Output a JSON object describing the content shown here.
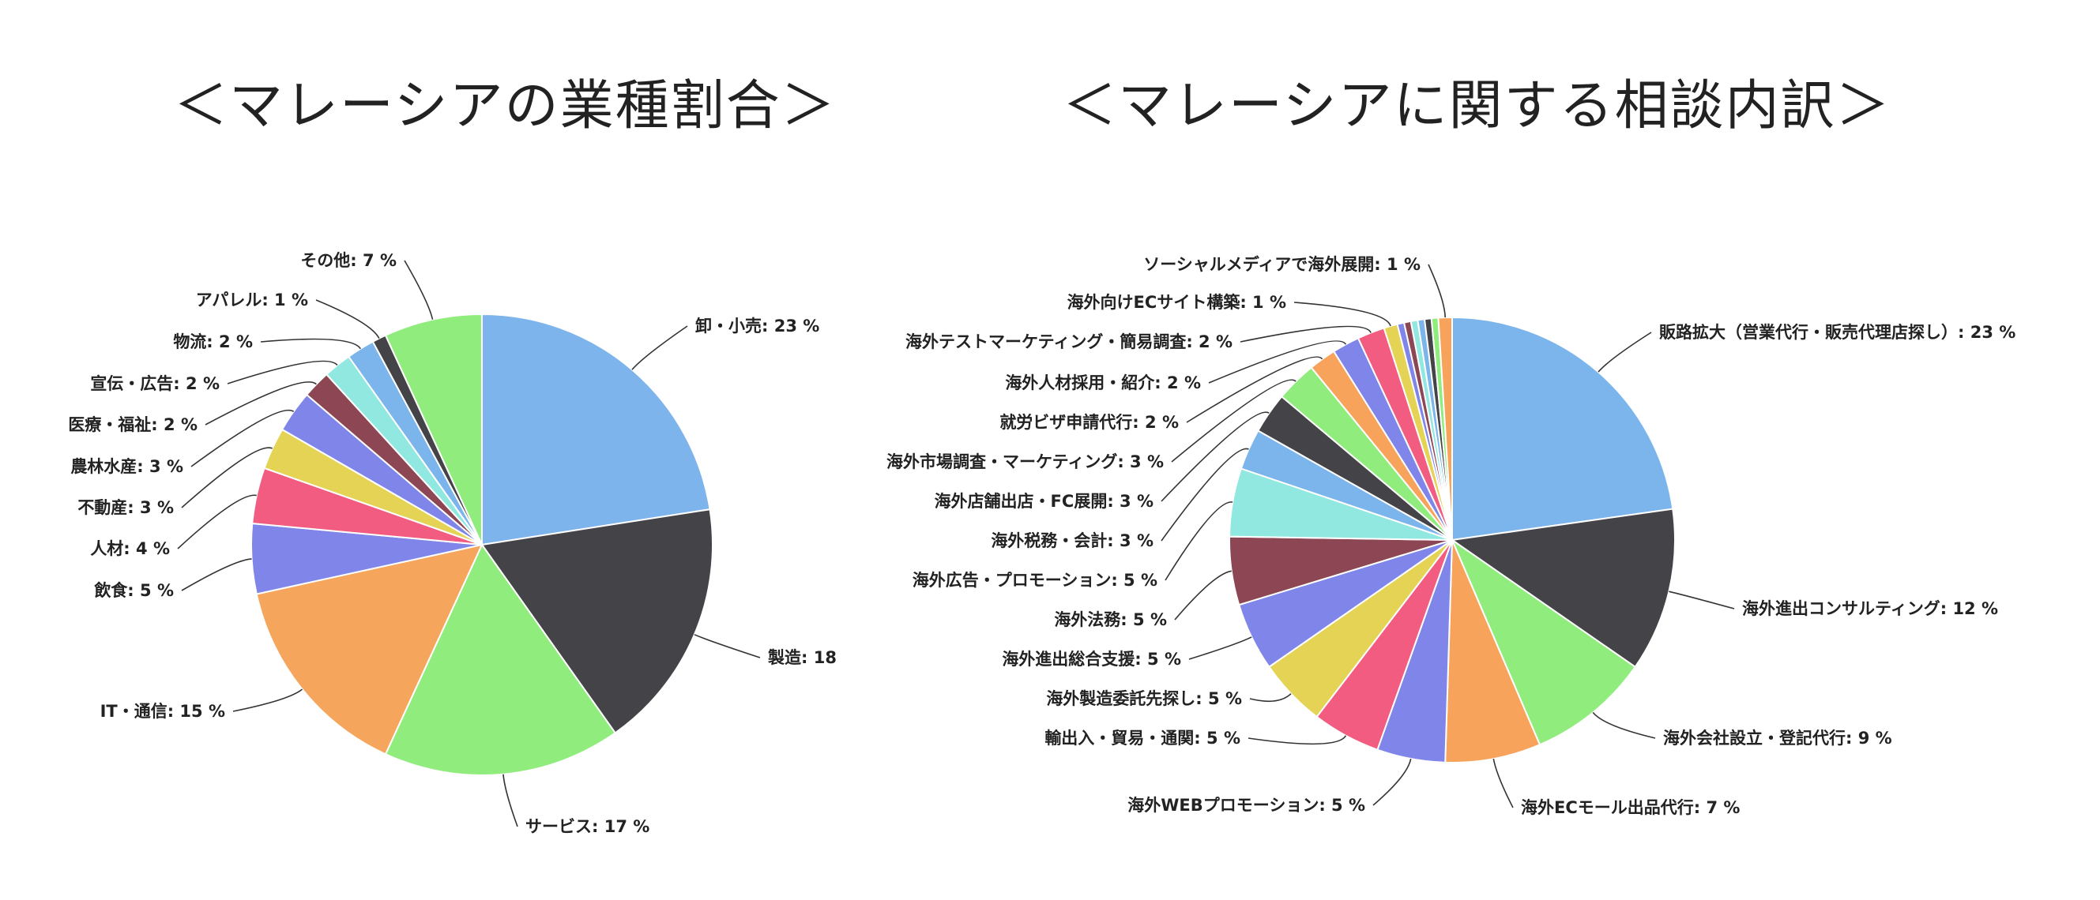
{
  "chart_data": [
    {
      "type": "pie",
      "title": "＜マレーシアの業種割合＞",
      "start_angle": "top",
      "direction": "clockwise",
      "slices": [
        {
          "label": "卸・小売: 23 %",
          "value": 23,
          "color": "#7eb4ec"
        },
        {
          "label": "製造: 18",
          "value": 18,
          "color": "#434348"
        },
        {
          "label": "サービス: 17 %",
          "value": 17,
          "color": "#91ec7e"
        },
        {
          "label": "IT・通信: 15 %",
          "value": 15,
          "color": "#f6a55d"
        },
        {
          "label": "飲食: 5 %",
          "value": 5,
          "color": "#8085e9"
        },
        {
          "label": "人材: 4 %",
          "value": 4,
          "color": "#f15c80"
        },
        {
          "label": "不動産: 3 %",
          "value": 3,
          "color": "#e4d354"
        },
        {
          "label": "農林水産: 3 %",
          "value": 3,
          "color": "#8085e9"
        },
        {
          "label": "医療・福祉: 2 %",
          "value": 2,
          "color": "#8d4653"
        },
        {
          "label": "宣伝・広告: 2 %",
          "value": 2,
          "color": "#91e8e1"
        },
        {
          "label": "物流: 2 %",
          "value": 2,
          "color": "#7cb5ec"
        },
        {
          "label": "アパレル: 1 %",
          "value": 1,
          "color": "#434348"
        },
        {
          "label": "その他: 7 %",
          "value": 7,
          "color": "#90ed7d"
        }
      ]
    },
    {
      "type": "pie",
      "title": "＜マレーシアに関する相談内訳＞",
      "start_angle": "top",
      "direction": "clockwise",
      "slices": [
        {
          "label": "販路拡大（営業代行・販売代理店探し）: 23 %",
          "value": 23,
          "color": "#7cb5ec"
        },
        {
          "label": "海外進出コンサルティング: 12 %",
          "value": 12,
          "color": "#434348"
        },
        {
          "label": "海外会社設立・登記代行: 9 %",
          "value": 9,
          "color": "#90ed7d"
        },
        {
          "label": "海外ECモール出品代行: 7 %",
          "value": 7,
          "color": "#f7a35c"
        },
        {
          "label": "海外WEBプロモーション: 5 %",
          "value": 5,
          "color": "#8085e9"
        },
        {
          "label": "輸出入・貿易・通関: 5 %",
          "value": 5,
          "color": "#f15c80"
        },
        {
          "label": "海外製造委託先探し: 5 %",
          "value": 5,
          "color": "#e4d354"
        },
        {
          "label": "海外進出総合支援: 5 %",
          "value": 5,
          "color": "#8085e9"
        },
        {
          "label": "海外法務: 5 %",
          "value": 5,
          "color": "#8d4653"
        },
        {
          "label": "海外広告・プロモーション: 5 %",
          "value": 5,
          "color": "#91e8e1"
        },
        {
          "label": "海外税務・会計: 3 %",
          "value": 3,
          "color": "#7cb5ec"
        },
        {
          "label": "海外店舗出店・FC展開: 3 %",
          "value": 3,
          "color": "#434348"
        },
        {
          "label": "海外市場調査・マーケティング: 3 %",
          "value": 3,
          "color": "#90ed7d"
        },
        {
          "label": "就労ビザ申請代行: 2 %",
          "value": 2,
          "color": "#f7a35c"
        },
        {
          "label": "海外人材採用・紹介: 2 %",
          "value": 2,
          "color": "#8085e9"
        },
        {
          "label": "海外テストマーケティング・簡易調査: 2 %",
          "value": 2,
          "color": "#f15c80"
        },
        {
          "label": "海外向けECサイト構築: 1 %",
          "value": 1,
          "color": "#e4d354"
        },
        {
          "label": "",
          "value": 0.5,
          "color": "#8085e9"
        },
        {
          "label": "",
          "value": 0.5,
          "color": "#8d4653"
        },
        {
          "label": "",
          "value": 0.5,
          "color": "#91e8e1"
        },
        {
          "label": "",
          "value": 0.5,
          "color": "#7cb5ec"
        },
        {
          "label": "",
          "value": 0.5,
          "color": "#434348"
        },
        {
          "label": "",
          "value": 0.5,
          "color": "#90ed7d"
        },
        {
          "label": "ソーシャルメディアで海外展開: 1 %",
          "value": 1,
          "color": "#f7a35c"
        }
      ]
    }
  ]
}
